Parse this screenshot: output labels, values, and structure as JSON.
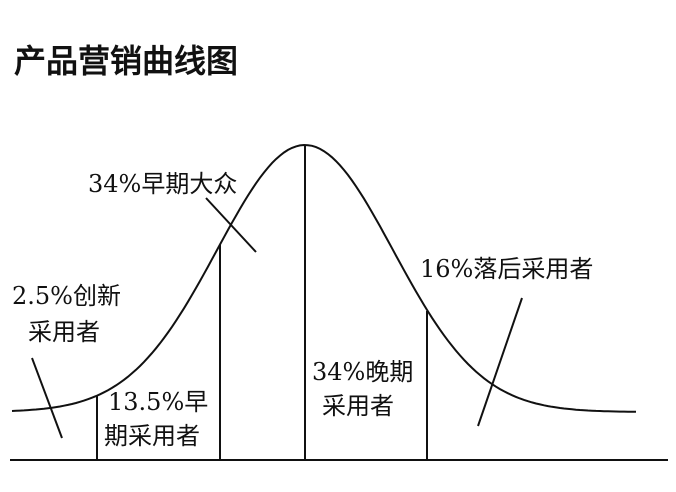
{
  "title": "产品营销曲线图",
  "labels": {
    "early_majority": "34%早期大众",
    "innovators": [
      "2.5%创新",
      "采用者"
    ],
    "early_adopters": [
      "13.5%早",
      "期采用者"
    ],
    "late_majority": [
      "34%晚期",
      "采用者"
    ],
    "laggards": "16%落后采用者"
  }
}
